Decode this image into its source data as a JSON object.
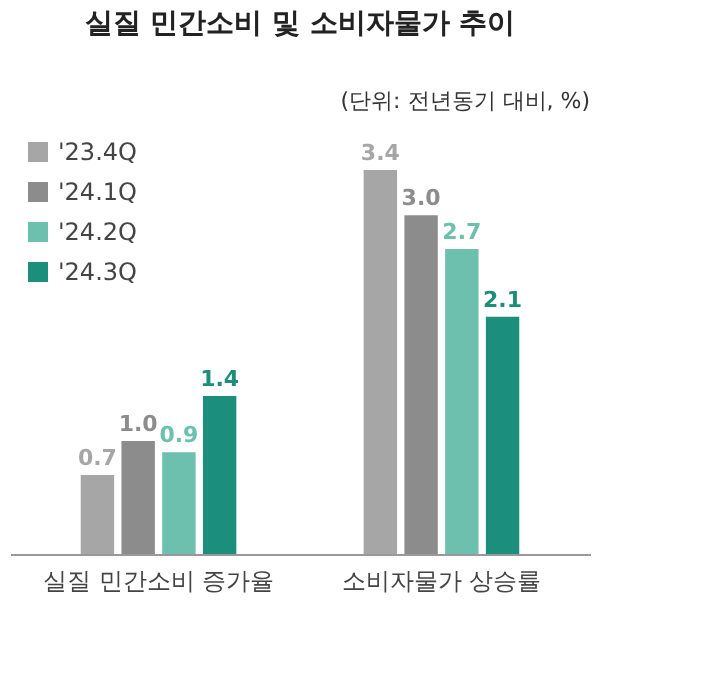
{
  "chart_data": {
    "type": "bar",
    "title": "실질 민간소비 및 소비자물가 추이",
    "subtitle": "(단위: 전년동기 대비, %)",
    "categories": [
      "실질 민간소비 증가율",
      "소비자물가 상승률"
    ],
    "series": [
      {
        "name": "'23.4Q",
        "color": "#a6a6a6",
        "values": [
          0.7,
          3.4
        ],
        "value_labels": [
          "0.7",
          "3.4"
        ]
      },
      {
        "name": "'24.1Q",
        "color": "#8c8c8c",
        "values": [
          1.0,
          3.0
        ],
        "value_labels": [
          "1.0",
          "3.0"
        ]
      },
      {
        "name": "'24.2Q",
        "color": "#6cc0ad",
        "values": [
          0.9,
          2.7
        ],
        "value_labels": [
          "0.9",
          "2.7"
        ]
      },
      {
        "name": "'24.3Q",
        "color": "#1b8f7b",
        "values": [
          1.4,
          2.1
        ],
        "value_labels": [
          "1.4",
          "2.1"
        ]
      }
    ],
    "legend": "top left",
    "grid": false
  }
}
